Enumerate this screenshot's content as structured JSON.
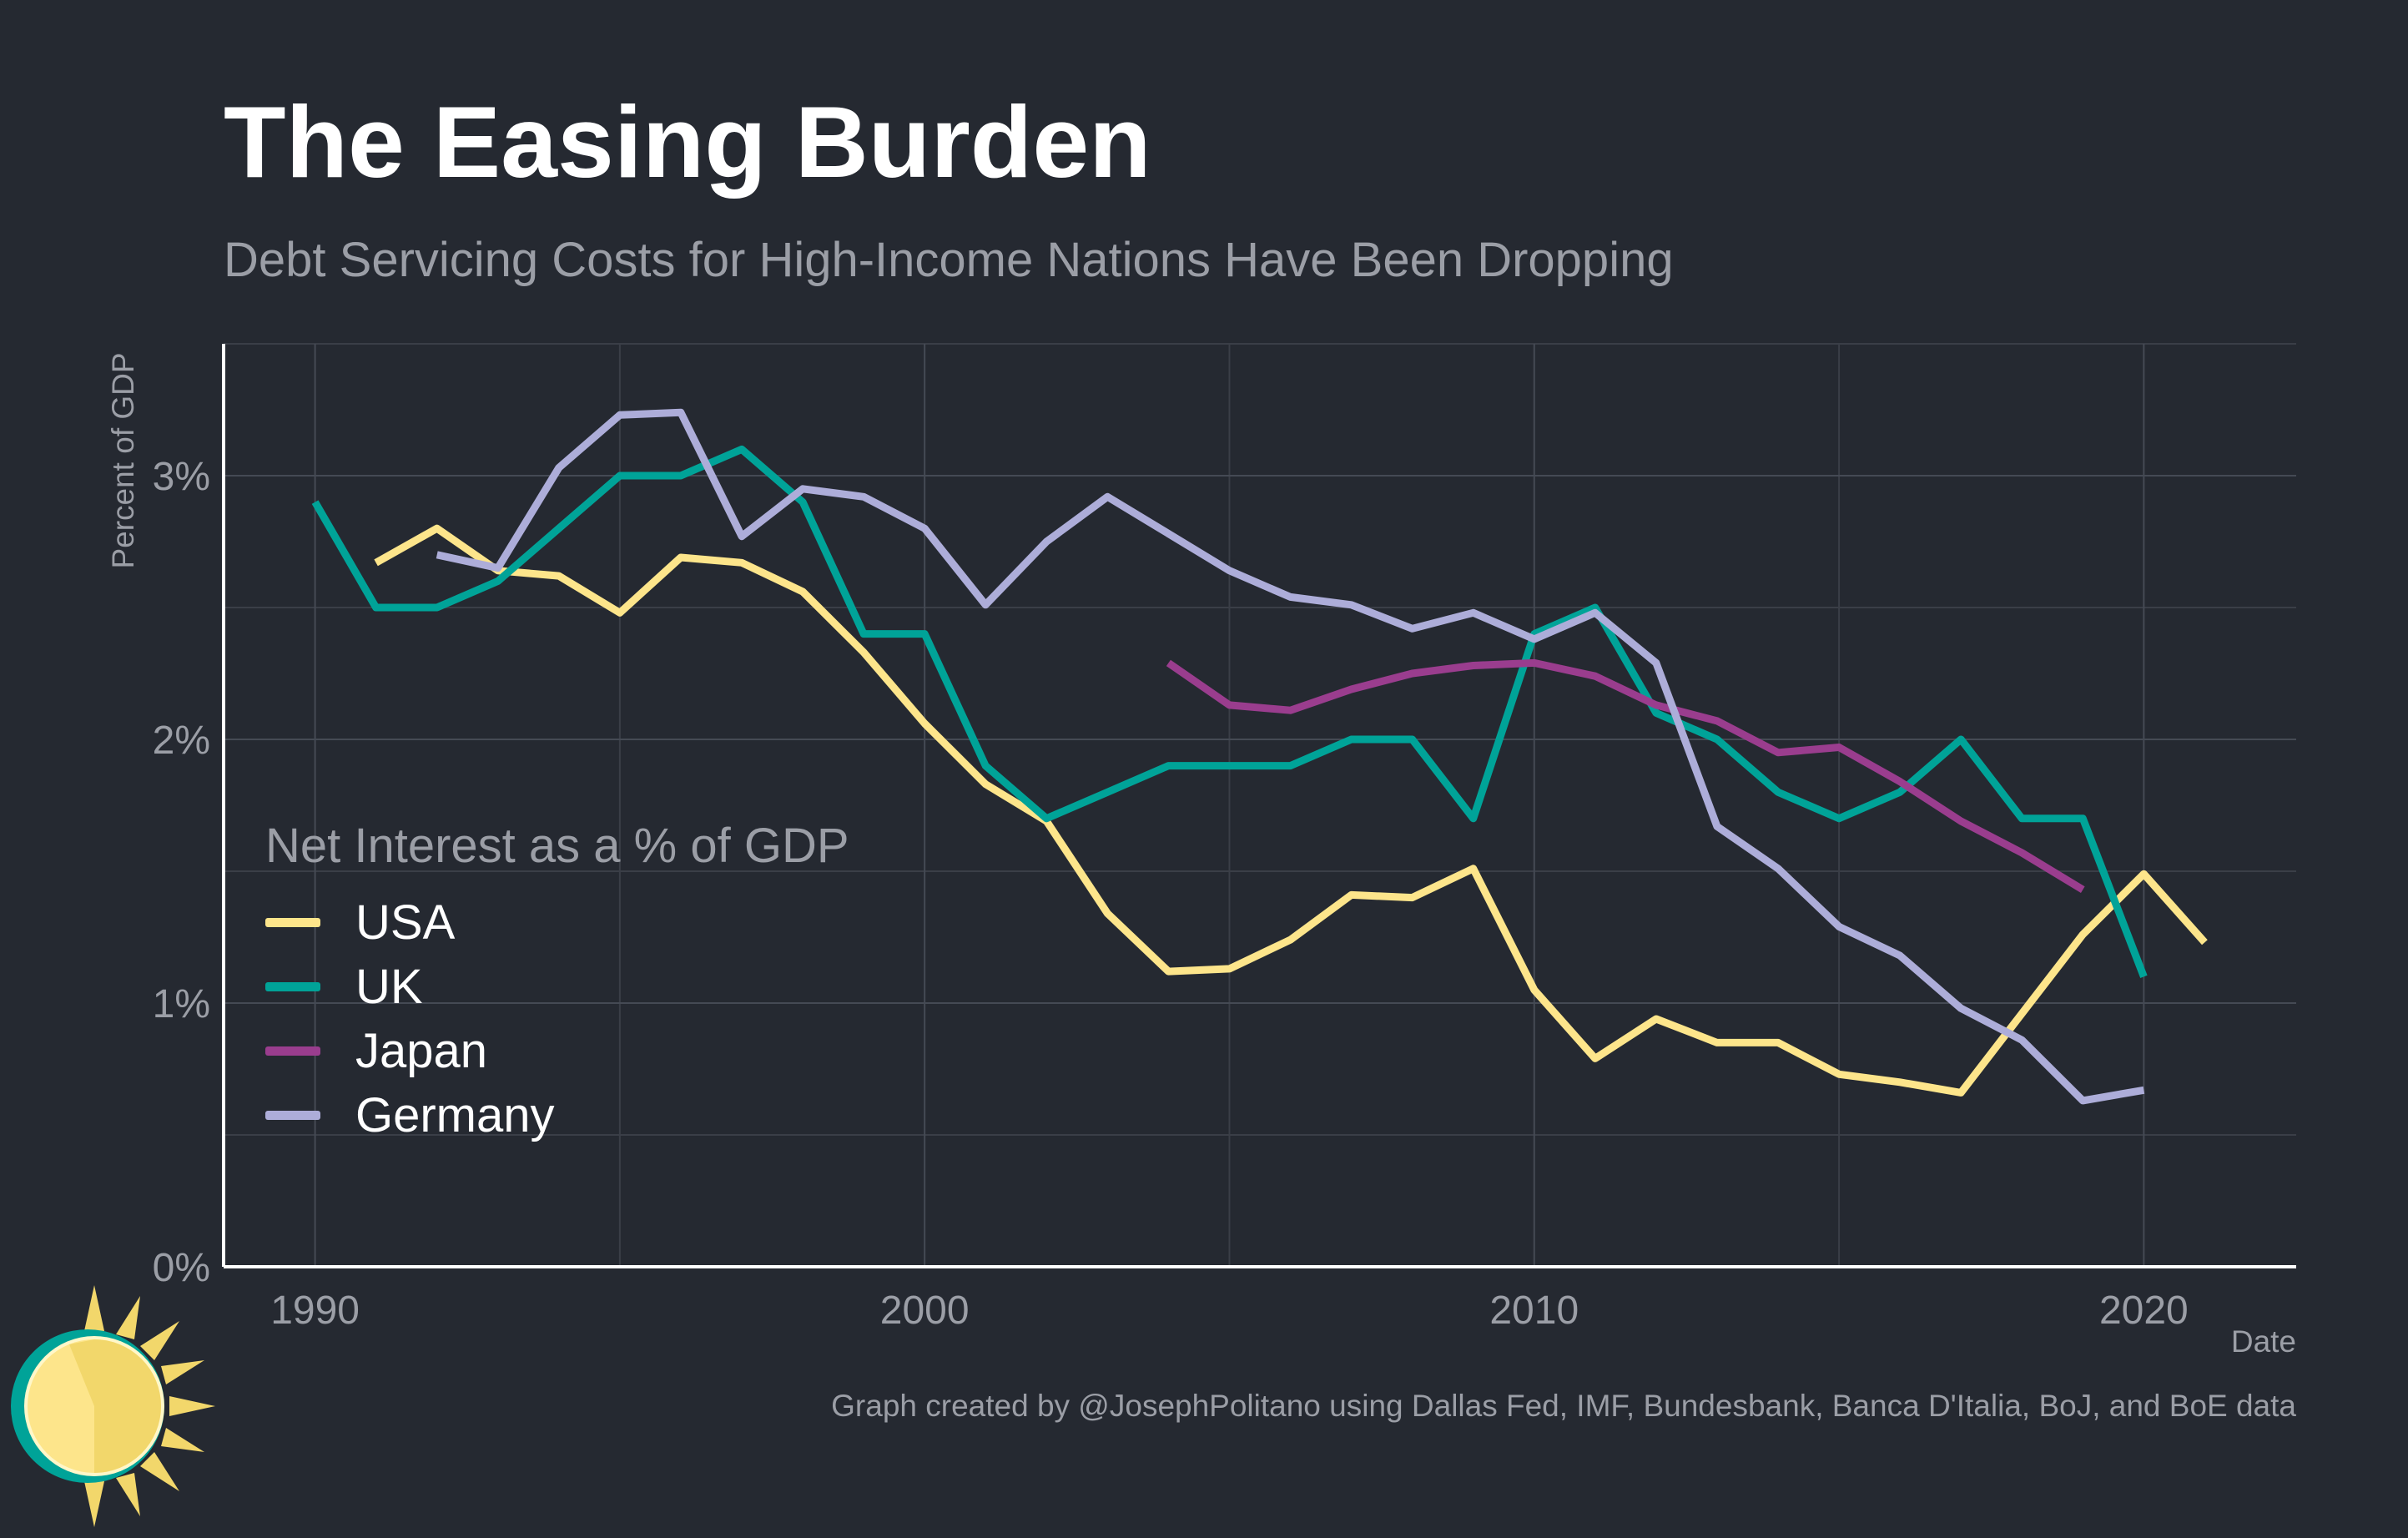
{
  "header": {
    "title": "The Easing Burden",
    "subtitle": "Debt Servicing Costs for High-Income Nations Have Been Dropping"
  },
  "caption": "Graph created by @JosephPolitano using Dallas Fed, IMF, Bundesbank, Banca D'Italia, BoJ, and BoE data",
  "chart_data": {
    "type": "line",
    "title": "The Easing Burden",
    "subtitle": "Debt Servicing Costs for High-Income Nations Have Been Dropping",
    "xlabel": "Date",
    "ylabel": "Percent of GDP",
    "xlim": [
      1988.5,
      2022.5
    ],
    "ylim": [
      0,
      3.5
    ],
    "x_ticks": [
      1990,
      2000,
      2010,
      2020
    ],
    "x_tick_labels": [
      "1990",
      "2000",
      "2010",
      "2020"
    ],
    "y_ticks": [
      0,
      1,
      2,
      3
    ],
    "y_tick_labels": [
      "0%",
      "1%",
      "2%",
      "3%"
    ],
    "grid": true,
    "legend_title": "Net Interest as a % of GDP",
    "legend_position": "bottom-left inside",
    "series": [
      {
        "name": "USA",
        "color": "#fde58b",
        "x": [
          1991,
          1992,
          1993,
          1994,
          1995,
          1996,
          1997,
          1998,
          1999,
          2000,
          2001,
          2002,
          2003,
          2004,
          2005,
          2006,
          2007,
          2008,
          2009,
          2010,
          2011,
          2012,
          2013,
          2014,
          2015,
          2016,
          2017,
          2018,
          2019,
          2020,
          2021
        ],
        "values": [
          2.67,
          2.8,
          2.64,
          2.62,
          2.48,
          2.69,
          2.67,
          2.56,
          2.33,
          2.06,
          1.83,
          1.69,
          1.34,
          1.12,
          1.13,
          1.24,
          1.41,
          1.4,
          1.51,
          1.05,
          0.79,
          0.94,
          0.85,
          0.85,
          0.73,
          0.7,
          0.66,
          0.96,
          1.26,
          1.49,
          1.23
        ]
      },
      {
        "name": "UK",
        "color": "#00a398",
        "x": [
          1990,
          1991,
          1992,
          1993,
          1994,
          1995,
          1996,
          1997,
          1998,
          1999,
          2000,
          2001,
          2002,
          2003,
          2004,
          2005,
          2006,
          2007,
          2008,
          2009,
          2010,
          2011,
          2012,
          2013,
          2014,
          2015,
          2016,
          2017,
          2018,
          2019,
          2020
        ],
        "values": [
          2.9,
          2.5,
          2.5,
          2.6,
          2.8,
          3.0,
          3.0,
          3.1,
          2.9,
          2.4,
          2.4,
          1.9,
          1.7,
          1.8,
          1.9,
          1.9,
          1.9,
          2.0,
          2.0,
          1.7,
          2.4,
          2.5,
          2.1,
          2.0,
          1.8,
          1.7,
          1.8,
          2.0,
          1.7,
          1.7,
          1.1
        ]
      },
      {
        "name": "Japan",
        "color": "#9a3d8e",
        "x": [
          2004,
          2005,
          2006,
          2007,
          2008,
          2009,
          2010,
          2011,
          2012,
          2013,
          2014,
          2015,
          2016,
          2017,
          2018,
          2019
        ],
        "values": [
          2.29,
          2.13,
          2.11,
          2.19,
          2.25,
          2.28,
          2.29,
          2.24,
          2.13,
          2.07,
          1.95,
          1.97,
          1.84,
          1.69,
          1.57,
          1.43
        ]
      },
      {
        "name": "Germany",
        "color": "#adadd9",
        "x": [
          1992,
          1993,
          1994,
          1995,
          1996,
          1997,
          1998,
          1999,
          2000,
          2001,
          2002,
          2003,
          2004,
          2005,
          2006,
          2007,
          2008,
          2009,
          2010,
          2011,
          2012,
          2013,
          2014,
          2015,
          2016,
          2017,
          2018,
          2019,
          2020
        ],
        "values": [
          2.7,
          2.65,
          3.03,
          3.23,
          3.24,
          2.77,
          2.95,
          2.92,
          2.8,
          2.51,
          2.75,
          2.92,
          2.78,
          2.64,
          2.54,
          2.51,
          2.42,
          2.48,
          2.38,
          2.48,
          2.29,
          1.67,
          1.51,
          1.29,
          1.18,
          0.98,
          0.86,
          0.63,
          0.67
        ]
      }
    ]
  }
}
